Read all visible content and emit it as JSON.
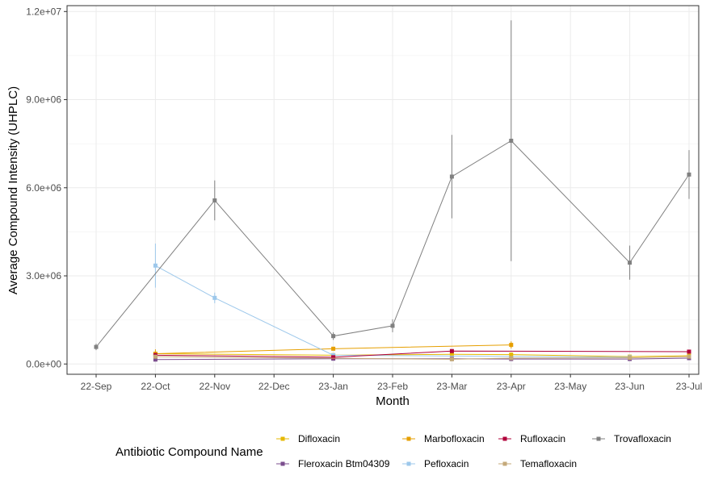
{
  "chart_data": {
    "type": "line",
    "xlabel": "Month",
    "ylabel": "Average Compound Intensity (UHPLC)",
    "x_categories": [
      "22-Sep",
      "22-Oct",
      "22-Nov",
      "22-Dec",
      "23-Jan",
      "23-Feb",
      "23-Mar",
      "23-Apr",
      "23-May",
      "23-Jun",
      "23-Jul"
    ],
    "y_ticks": [
      0,
      3000000,
      6000000,
      9000000,
      12000000
    ],
    "y_tick_labels": [
      "0.0e+00",
      "3.0e+06",
      "6.0e+06",
      "9.0e+06",
      "1.2e+07"
    ],
    "ylim": [
      -350000,
      12200000
    ],
    "grid": true,
    "legend": {
      "title": "Antibiotic Compound Name",
      "position": "bottom"
    },
    "series": [
      {
        "name": "Difloxacin",
        "color": "#E6B800",
        "points": [
          {
            "x": "22-Oct",
            "y": 350000
          },
          {
            "x": "23-Jan",
            "y": 300000
          },
          {
            "x": "23-Mar",
            "y": 330000
          },
          {
            "x": "23-Apr",
            "y": 320000
          },
          {
            "x": "23-Jun",
            "y": 250000
          },
          {
            "x": "23-Jul",
            "y": 280000
          }
        ]
      },
      {
        "name": "Fleroxacin Btm04309",
        "color": "#7B4E8E",
        "points": [
          {
            "x": "22-Oct",
            "y": 150000
          },
          {
            "x": "23-Jan",
            "y": 180000
          },
          {
            "x": "23-Mar",
            "y": 180000
          },
          {
            "x": "23-Apr",
            "y": 170000
          },
          {
            "x": "23-Jun",
            "y": 170000
          },
          {
            "x": "23-Jul",
            "y": 200000
          }
        ]
      },
      {
        "name": "Marbofloxacin",
        "color": "#E69F00",
        "points": [
          {
            "x": "22-Oct",
            "y": 350000,
            "err": 150000
          },
          {
            "x": "23-Jan",
            "y": 520000
          },
          {
            "x": "23-Apr",
            "y": 650000,
            "err": 120000
          }
        ]
      },
      {
        "name": "Pefloxacin",
        "color": "#9DC8EB",
        "points": [
          {
            "x": "22-Oct",
            "y": 3350000,
            "err": 750000
          },
          {
            "x": "22-Nov",
            "y": 2250000,
            "err": 180000
          },
          {
            "x": "23-Jan",
            "y": 300000
          },
          {
            "x": "23-Jun",
            "y": 230000
          }
        ]
      },
      {
        "name": "Rufloxacin",
        "color": "#B0003A",
        "points": [
          {
            "x": "22-Oct",
            "y": 300000,
            "err": 80000
          },
          {
            "x": "23-Jan",
            "y": 230000
          },
          {
            "x": "23-Mar",
            "y": 440000
          },
          {
            "x": "23-Jul",
            "y": 420000
          }
        ]
      },
      {
        "name": "Temafloxacin",
        "color": "#C4A97A",
        "points": [
          {
            "x": "22-Oct",
            "y": 250000
          },
          {
            "x": "23-Mar",
            "y": 160000
          },
          {
            "x": "23-Apr",
            "y": 200000
          },
          {
            "x": "23-Jun",
            "y": 210000
          },
          {
            "x": "23-Jul",
            "y": 250000
          }
        ]
      },
      {
        "name": "Trovafloxacin",
        "color": "#808080",
        "points": [
          {
            "x": "22-Sep",
            "y": 580000,
            "err": 110000
          },
          {
            "x": "22-Nov",
            "y": 5570000,
            "err": 680000
          },
          {
            "x": "23-Jan",
            "y": 950000,
            "err": 130000
          },
          {
            "x": "23-Feb",
            "y": 1300000,
            "err": 220000
          },
          {
            "x": "23-Mar",
            "y": 6380000,
            "err": 1420000
          },
          {
            "x": "23-Apr",
            "y": 7600000,
            "err": 4100000
          },
          {
            "x": "23-Jun",
            "y": 3450000,
            "err": 580000
          },
          {
            "x": "23-Jul",
            "y": 6450000,
            "err": 830000
          }
        ]
      }
    ]
  }
}
